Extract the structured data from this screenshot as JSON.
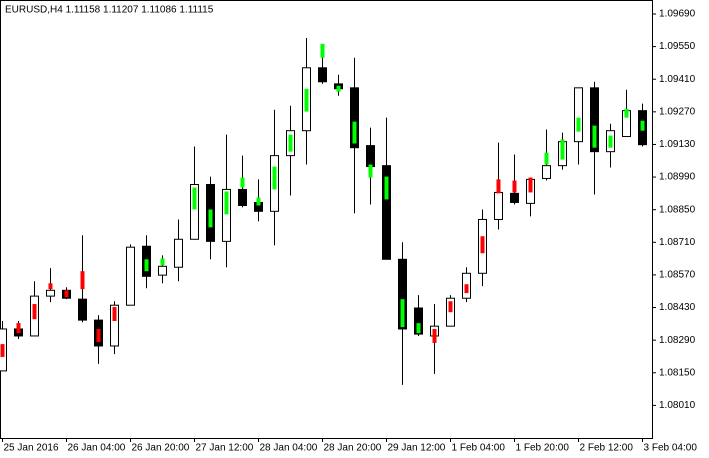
{
  "chart_data": {
    "type": "candlestick",
    "title": "EURUSD,H4  1.11158 1.11207 1.11086 1.11115",
    "categories": [
      "25 Jan 2016",
      null,
      null,
      null,
      "26 Jan 04:00",
      null,
      null,
      null,
      "26 Jan 20:00",
      null,
      null,
      null,
      "27 Jan 12:00",
      null,
      null,
      null,
      "28 Jan 04:00",
      null,
      null,
      null,
      "28 Jan 20:00",
      null,
      null,
      null,
      "29 Jan 12:00",
      null,
      null,
      null,
      "1 Feb 04:00",
      null,
      null,
      null,
      "1 Feb 20:00",
      null,
      null,
      null,
      "2 Feb 12:00",
      null,
      null,
      null,
      "3 Feb 04:00"
    ],
    "open": [
      1.08158,
      1.08338,
      1.08308,
      1.08479,
      1.08504,
      1.08466,
      1.08376,
      1.08265,
      1.0844,
      1.08693,
      1.08569,
      1.08603,
      1.08723,
      1.08958,
      1.08714,
      1.08937,
      1.08881,
      1.08843,
      1.09082,
      1.09189,
      1.09459,
      1.0939,
      1.09373,
      1.09125,
      1.09039,
      1.08637,
      1.08428,
      1.08308,
      1.0835,
      1.0847,
      1.08577,
      1.08808,
      1.0892,
      1.08877,
      1.08984,
      1.09039,
      1.09142,
      1.09373,
      1.09099,
      1.09164,
      1.09275
    ],
    "high": [
      1.08372,
      1.08372,
      1.08543,
      1.08599,
      1.08517,
      1.0874,
      1.08397,
      1.08457,
      1.08701,
      1.0874,
      1.08654,
      1.08808,
      1.09121,
      1.08992,
      1.09172,
      1.09082,
      1.0898,
      1.09279,
      1.09296,
      1.09587,
      1.09515,
      1.09429,
      1.09502,
      1.09202,
      1.09245,
      1.0871,
      1.08483,
      1.08445,
      1.08483,
      1.08603,
      1.08851,
      1.09138,
      1.09087,
      1.08988,
      1.09194,
      1.09181,
      1.09373,
      1.09399,
      1.09219,
      1.09365,
      1.09305
    ],
    "low": [
      1.08158,
      1.08295,
      1.08308,
      1.08453,
      1.08466,
      1.08367,
      1.08188,
      1.0823,
      1.0844,
      1.08513,
      1.08534,
      1.08543,
      1.08723,
      1.08637,
      1.08603,
      1.0886,
      1.088,
      1.08697,
      1.08911,
      1.09044,
      1.0939,
      1.09339,
      1.08834,
      1.08872,
      1.08637,
      1.08098,
      1.08308,
      1.08145,
      1.0835,
      1.08453,
      1.08522,
      1.08765,
      1.08872,
      1.08821,
      1.08975,
      1.09022,
      1.09044,
      1.08915,
      1.09031,
      1.09164,
      1.09121
    ],
    "close": [
      1.08338,
      1.08308,
      1.08479,
      1.08504,
      1.0847,
      1.08376,
      1.08265,
      1.0844,
      1.08689,
      1.08564,
      1.08607,
      1.08723,
      1.08958,
      1.08714,
      1.08937,
      1.08868,
      1.08843,
      1.09082,
      1.09189,
      1.09459,
      1.09399,
      1.09369,
      1.09116,
      1.09035,
      1.08637,
      1.08338,
      1.08316,
      1.0835,
      1.0847,
      1.08577,
      1.08808,
      1.08924,
      1.08881,
      1.0898,
      1.09039,
      1.09142,
      1.09373,
      1.09099,
      1.09189,
      1.09275,
      1.09129
    ],
    "signal": {
      "top": [
        1.08273,
        1.08363,
        1.08445,
        1.08534,
        1.08504,
        1.08586,
        1.08338,
        1.08432,
        null,
        1.08637,
        1.08641,
        null,
        1.08945,
        1.08851,
        1.08928,
        1.08988,
        1.08902,
        1.09035,
        1.09172,
        1.09369,
        1.09562,
        1.09382,
        1.09228,
        1.09044,
        1.08992,
        1.08466,
        1.08363,
        1.08338,
        1.08457,
        1.0853,
        1.08736,
        1.0898,
        1.08975,
        1.08988,
        1.09095,
        1.09151,
        1.09245,
        1.09211,
        1.09168,
        1.09283,
        1.09232
      ],
      "bottom": [
        1.08218,
        1.0832,
        1.0838,
        1.08509,
        1.08474,
        1.08509,
        1.08282,
        1.08372,
        null,
        1.08586,
        1.08611,
        null,
        1.08851,
        1.08774,
        1.0883,
        1.08945,
        1.08868,
        1.08937,
        1.09099,
        1.09271,
        1.09502,
        1.09356,
        1.09134,
        1.08988,
        1.08894,
        1.08346,
        1.0832,
        1.08278,
        1.0841,
        1.08492,
        1.08663,
        1.0892,
        1.08924,
        1.08924,
        1.09044,
        1.09065,
        1.09185,
        1.09116,
        1.09116,
        1.09245,
        1.09189
      ],
      "colors": [
        "#ff0000",
        "#ff0000",
        "#ff0000",
        "#ff0000",
        "#ff0000",
        "#ff0000",
        "#ff0000",
        "#ff0000",
        null,
        "#00ff00",
        "#00ff00",
        null,
        "#00ff00",
        "#00ff00",
        "#00ff00",
        "#00ff00",
        "#00ff00",
        "#00ff00",
        "#00ff00",
        "#00ff00",
        "#00ff00",
        "#00ff00",
        "#00ff00",
        "#00ff00",
        "#00ff00",
        "#00ff00",
        "#00ff00",
        "#ff0000",
        "#ff0000",
        "#ff0000",
        "#ff0000",
        "#ff0000",
        "#ff0000",
        "#ff0000",
        "#00ff00",
        "#00ff00",
        "#00ff00",
        "#00ff00",
        "#00ff00",
        "#00ff00",
        "#00ff00"
      ]
    },
    "up_color": "#ffffff",
    "down_color": "#000000",
    "ylim": [
      1.0787,
      1.0975
    ],
    "yticks": [
      {
        "value": 1.0969,
        "label": "1.09690"
      },
      {
        "value": 1.0955,
        "label": "1.09550"
      },
      {
        "value": 1.0941,
        "label": "1.09410"
      },
      {
        "value": 1.0927,
        "label": "1.09270"
      },
      {
        "value": 1.0913,
        "label": "1.09130"
      },
      {
        "value": 1.0899,
        "label": "1.08990"
      },
      {
        "value": 1.0885,
        "label": "1.08850"
      },
      {
        "value": 1.0871,
        "label": "1.08710"
      },
      {
        "value": 1.0857,
        "label": "1.08570"
      },
      {
        "value": 1.0843,
        "label": "1.08430"
      },
      {
        "value": 1.0829,
        "label": "1.08290"
      },
      {
        "value": 1.0815,
        "label": "1.08150"
      },
      {
        "value": 1.0801,
        "label": "1.08010"
      }
    ]
  }
}
